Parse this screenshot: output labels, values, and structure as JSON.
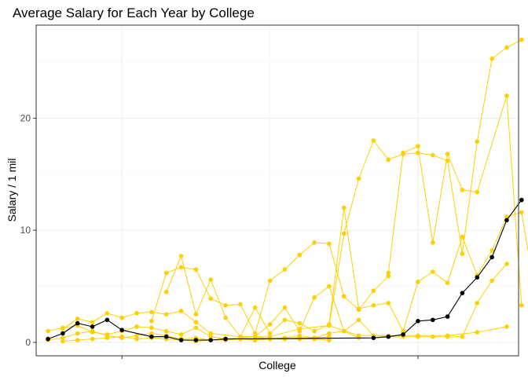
{
  "chart_data": {
    "type": "line",
    "title": "Average Salary for Each Year by College",
    "xlabel": "College",
    "ylabel": "Salary / 1 mil",
    "ylim": [
      -1.2,
      28.3
    ],
    "xlim": [
      0.2,
      32.8
    ],
    "y_ticks": [
      0,
      10,
      20
    ],
    "y_tick_labels": [
      "0",
      "10",
      "20"
    ],
    "x_major_ticks": [
      6,
      26
    ],
    "grid": true,
    "legend": "none",
    "colors": {
      "highlight": "#000000",
      "others": "#FFD000",
      "panel_border": "#333333",
      "grid_major": "#EBEBEB",
      "grid_minor": "#F5F5F5"
    },
    "series": [
      {
        "highlight": true,
        "points": [
          [
            1,
            0.3
          ],
          [
            2,
            0.8
          ],
          [
            3,
            1.7
          ],
          [
            4,
            1.4
          ],
          [
            5,
            2.0
          ],
          [
            6,
            1.1
          ],
          [
            8,
            0.5
          ],
          [
            9,
            0.5
          ],
          [
            10,
            0.2
          ],
          [
            11,
            0.2
          ],
          [
            12,
            0.2
          ],
          [
            13,
            0.3
          ],
          [
            23,
            0.4
          ],
          [
            24,
            0.5
          ],
          [
            25,
            0.7
          ],
          [
            26,
            1.9
          ],
          [
            27,
            2.0
          ],
          [
            28,
            2.3
          ],
          [
            29,
            4.4
          ],
          [
            30,
            5.8
          ],
          [
            31,
            7.6
          ],
          [
            32,
            10.9
          ],
          [
            33,
            12.7
          ]
        ]
      },
      {
        "points": [
          [
            20,
            1.5
          ],
          [
            21,
            9.7
          ],
          [
            22,
            14.6
          ],
          [
            23,
            18.0
          ],
          [
            24,
            16.3
          ],
          [
            25,
            16.8
          ],
          [
            26,
            16.9
          ],
          [
            27,
            16.7
          ],
          [
            28,
            16.2
          ],
          [
            29,
            7.9
          ],
          [
            30,
            17.9
          ],
          [
            31,
            25.3
          ],
          [
            32,
            26.3
          ],
          [
            33,
            27.0
          ]
        ]
      },
      {
        "points": [
          [
            24,
            6.2
          ],
          [
            25,
            16.9
          ],
          [
            26,
            17.5
          ],
          [
            27,
            8.9
          ],
          [
            28,
            16.8
          ],
          [
            29,
            13.6
          ],
          [
            30,
            13.4
          ],
          [
            32,
            22.0
          ],
          [
            33,
            3.3
          ]
        ]
      },
      {
        "points": [
          [
            14,
            0.5
          ],
          [
            15,
            3.1
          ],
          [
            16,
            0.8
          ],
          [
            17,
            2.0
          ],
          [
            18,
            1.7
          ],
          [
            19,
            1.0
          ],
          [
            20,
            1.6
          ],
          [
            21,
            12.0
          ],
          [
            22,
            3.0
          ],
          [
            23,
            3.3
          ],
          [
            24,
            3.5
          ],
          [
            25,
            1.0
          ],
          [
            26,
            5.4
          ],
          [
            27,
            6.3
          ],
          [
            28,
            5.3
          ],
          [
            29,
            9.4
          ],
          [
            30,
            6.0
          ],
          [
            31,
            8.2
          ],
          [
            32,
            11.2
          ],
          [
            33,
            11.6
          ],
          [
            34,
            3.9
          ]
        ]
      },
      {
        "points": [
          [
            8,
            1.9
          ],
          [
            9,
            6.2
          ],
          [
            10,
            6.7
          ],
          [
            11,
            6.5
          ],
          [
            12,
            3.9
          ],
          [
            13,
            3.3
          ],
          [
            14,
            3.4
          ],
          [
            15,
            0.8
          ],
          [
            16,
            5.5
          ],
          [
            17,
            6.5
          ],
          [
            18,
            7.8
          ],
          [
            19,
            8.9
          ],
          [
            20,
            8.8
          ],
          [
            21,
            4.1
          ],
          [
            22,
            2.9
          ],
          [
            23,
            4.6
          ],
          [
            24,
            5.9
          ]
        ]
      },
      {
        "points": [
          [
            9,
            4.5
          ],
          [
            10,
            7.7
          ],
          [
            11,
            2.5
          ],
          [
            12,
            5.6
          ],
          [
            13,
            2.2
          ],
          [
            14,
            0.5
          ],
          [
            15,
            0.5
          ],
          [
            16,
            1.6
          ],
          [
            17,
            3.1
          ],
          [
            18,
            1.0
          ],
          [
            19,
            4.0
          ],
          [
            20,
            5.0
          ],
          [
            21,
            1.0
          ],
          [
            22,
            2.0
          ],
          [
            23,
            0.6
          ],
          [
            24,
            0.5
          ],
          [
            25,
            0.5
          ],
          [
            26,
            0.5
          ],
          [
            27,
            0.5
          ],
          [
            28,
            0.5
          ],
          [
            29,
            0.5
          ],
          [
            30,
            3.5
          ],
          [
            31,
            5.5
          ],
          [
            32,
            7.0
          ]
        ]
      },
      {
        "points": [
          [
            2,
            1.2
          ],
          [
            3,
            2.1
          ],
          [
            4,
            1.8
          ],
          [
            5,
            2.6
          ],
          [
            6,
            2.2
          ],
          [
            7,
            2.6
          ],
          [
            8,
            2.7
          ],
          [
            9,
            2.5
          ],
          [
            10,
            2.8
          ],
          [
            11,
            1.8
          ],
          [
            12,
            0.8
          ],
          [
            14,
            0.5
          ],
          [
            16,
            0.5
          ],
          [
            18,
            1.2
          ],
          [
            20,
            1.5
          ],
          [
            22,
            0.6
          ],
          [
            24,
            0.6
          ],
          [
            26,
            0.6
          ],
          [
            28,
            0.6
          ],
          [
            30,
            0.9
          ],
          [
            32,
            1.4
          ]
        ]
      },
      {
        "points": [
          [
            1,
            1.0
          ],
          [
            2,
            1.3
          ],
          [
            3,
            1.5
          ],
          [
            4,
            0.9
          ],
          [
            5,
            0.7
          ],
          [
            6,
            1.0
          ],
          [
            7,
            1.4
          ],
          [
            8,
            1.3
          ],
          [
            9,
            1.0
          ],
          [
            10,
            0.7
          ],
          [
            11,
            1.3
          ],
          [
            12,
            0.5
          ],
          [
            13,
            0.3
          ],
          [
            14,
            0.4
          ],
          [
            15,
            0.5
          ],
          [
            16,
            0.3
          ],
          [
            17,
            0.4
          ],
          [
            18,
            0.6
          ],
          [
            19,
            0.4
          ],
          [
            20,
            0.8
          ],
          [
            21,
            1.0
          ],
          [
            22,
            0.4
          ]
        ]
      },
      {
        "points": [
          [
            1,
            0.2
          ],
          [
            2,
            0.4
          ],
          [
            3,
            0.8
          ],
          [
            4,
            1.0
          ],
          [
            5,
            0.6
          ],
          [
            6,
            0.4
          ],
          [
            7,
            0.6
          ],
          [
            8,
            0.8
          ],
          [
            9,
            0.6
          ],
          [
            10,
            0.3
          ],
          [
            11,
            0.4
          ],
          [
            12,
            0.2
          ],
          [
            13,
            0.3
          ],
          [
            14,
            0.3
          ],
          [
            15,
            0.3
          ],
          [
            16,
            0.3
          ],
          [
            17,
            0.3
          ],
          [
            18,
            0.3
          ],
          [
            19,
            0.3
          ],
          [
            20,
            0.2
          ]
        ]
      },
      {
        "points": [
          [
            2,
            0.1
          ],
          [
            3,
            0.2
          ],
          [
            4,
            0.3
          ],
          [
            5,
            0.4
          ],
          [
            6,
            0.5
          ],
          [
            7,
            0.3
          ],
          [
            8,
            0.4
          ],
          [
            9,
            0.3
          ],
          [
            10,
            0.2
          ],
          [
            11,
            0.1
          ],
          [
            12,
            0.2
          ],
          [
            13,
            0.2
          ],
          [
            14,
            0.3
          ],
          [
            15,
            0.2
          ],
          [
            16,
            0.3
          ],
          [
            17,
            0.3
          ],
          [
            18,
            0.4
          ],
          [
            19,
            0.4
          ],
          [
            20,
            0.5
          ]
        ]
      }
    ]
  }
}
